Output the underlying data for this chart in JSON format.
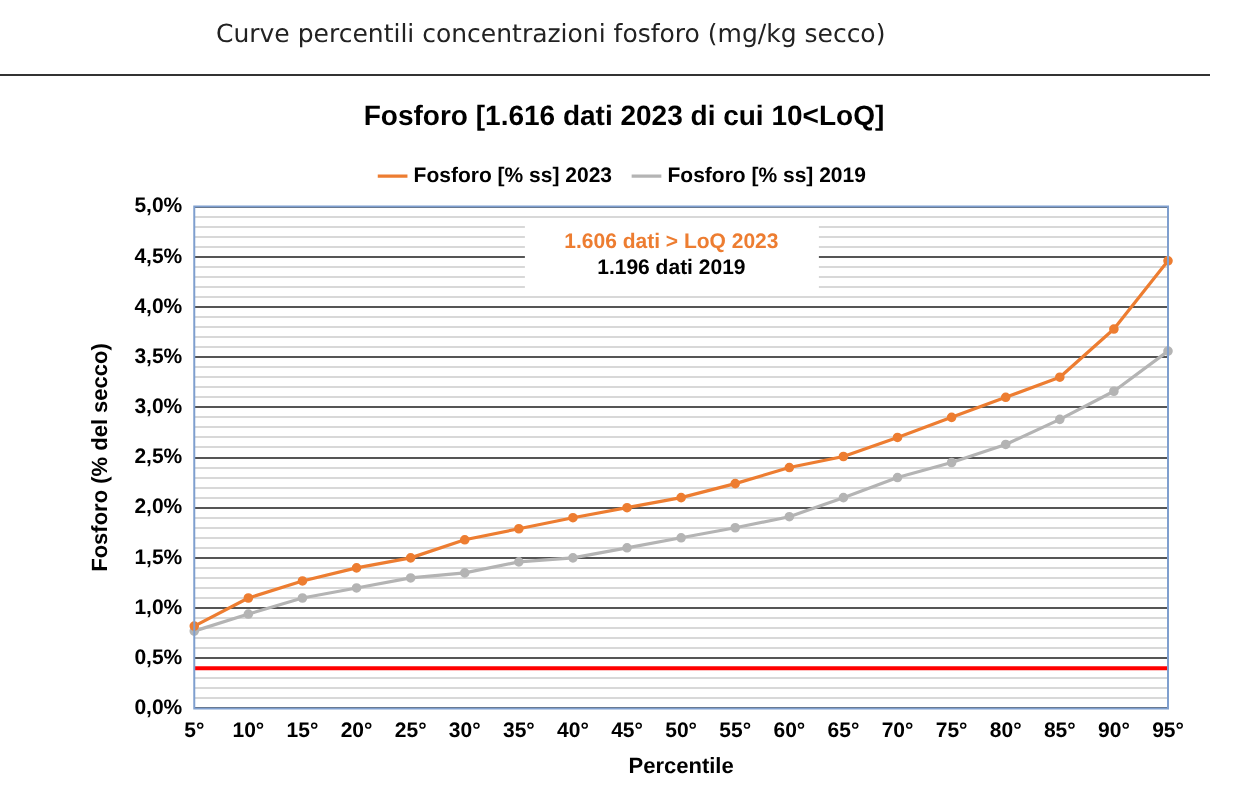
{
  "chart_data": {
    "type": "line",
    "title": "Curve percentili concentrazioni fosforo (mg/kg secco)",
    "subtitle": "Fosforo [1.616 dati 2023 di cui 10<LoQ]",
    "xlabel": "Percentile",
    "ylabel": "Fosforo (% del secco)",
    "categories": [
      "5°",
      "10°",
      "15°",
      "20°",
      "25°",
      "30°",
      "35°",
      "40°",
      "45°",
      "50°",
      "55°",
      "60°",
      "65°",
      "70°",
      "75°",
      "80°",
      "85°",
      "90°",
      "95°"
    ],
    "series": [
      {
        "name": "Fosforo [% ss] 2023",
        "color": "#ed7d31",
        "values": [
          0.82,
          1.1,
          1.27,
          1.4,
          1.5,
          1.68,
          1.79,
          1.9,
          2.0,
          2.1,
          2.24,
          2.4,
          2.51,
          2.7,
          2.9,
          3.1,
          3.3,
          3.78,
          4.46
        ]
      },
      {
        "name": "Fosforo [% ss] 2019",
        "color": "#b4b4b4",
        "values": [
          0.77,
          0.94,
          1.1,
          1.2,
          1.3,
          1.35,
          1.46,
          1.5,
          1.6,
          1.7,
          1.8,
          1.91,
          2.1,
          2.3,
          2.45,
          2.63,
          2.88,
          3.16,
          3.56
        ]
      }
    ],
    "ylim": [
      0,
      5
    ],
    "yticks": [
      {
        "value": 0,
        "label": "0,0%"
      },
      {
        "value": 0.1,
        "label": null
      },
      {
        "value": 0.2,
        "label": null
      },
      {
        "value": 0.3,
        "label": null
      },
      {
        "value": 0.4,
        "label": null
      },
      {
        "value": 0.5,
        "label": "0,5%"
      },
      {
        "value": 0.6,
        "label": null
      },
      {
        "value": 0.7,
        "label": null
      },
      {
        "value": 0.8,
        "label": null
      },
      {
        "value": 0.9,
        "label": null
      },
      {
        "value": 1,
        "label": "1,0%"
      },
      {
        "value": 1.1,
        "label": null
      },
      {
        "value": 1.2,
        "label": null
      },
      {
        "value": 1.3,
        "label": null
      },
      {
        "value": 1.4,
        "label": null
      },
      {
        "value": 1.5,
        "label": "1,5%"
      },
      {
        "value": 1.6,
        "label": null
      },
      {
        "value": 1.7,
        "label": null
      },
      {
        "value": 1.8,
        "label": null
      },
      {
        "value": 1.9,
        "label": null
      },
      {
        "value": 2,
        "label": "2,0%"
      },
      {
        "value": 2.1,
        "label": null
      },
      {
        "value": 2.2,
        "label": null
      },
      {
        "value": 2.3,
        "label": null
      },
      {
        "value": 2.4,
        "label": null
      },
      {
        "value": 2.5,
        "label": "2,5%"
      },
      {
        "value": 2.6,
        "label": null
      },
      {
        "value": 2.7,
        "label": null
      },
      {
        "value": 2.8,
        "label": null
      },
      {
        "value": 2.9,
        "label": null
      },
      {
        "value": 3,
        "label": "3,0%"
      },
      {
        "value": 3.1,
        "label": null
      },
      {
        "value": 3.2,
        "label": null
      },
      {
        "value": 3.3,
        "label": null
      },
      {
        "value": 3.4,
        "label": null
      },
      {
        "value": 3.5,
        "label": "3,5%"
      },
      {
        "value": 3.6,
        "label": null
      },
      {
        "value": 3.7,
        "label": null
      },
      {
        "value": 3.8,
        "label": null
      },
      {
        "value": 3.9,
        "label": null
      },
      {
        "value": 4,
        "label": "4,0%"
      },
      {
        "value": 4.1,
        "label": null
      },
      {
        "value": 4.2,
        "label": null
      },
      {
        "value": 4.3,
        "label": null
      },
      {
        "value": 4.4,
        "label": null
      },
      {
        "value": 4.5,
        "label": "4,5%"
      },
      {
        "value": 4.6,
        "label": null
      },
      {
        "value": 4.7,
        "label": null
      },
      {
        "value": 4.8,
        "label": null
      },
      {
        "value": 4.9,
        "label": null
      },
      {
        "value": 5,
        "label": "5,0%"
      }
    ],
    "ref_lines": [
      {
        "axis": "y",
        "value": 0.4,
        "color": "#ff0000"
      }
    ],
    "annotations": [
      "1.606 dati > LoQ 2023",
      "1.196 dati 2019"
    ],
    "grid": "y",
    "legend": "top",
    "marker": "circle",
    "line_style": "solid"
  }
}
